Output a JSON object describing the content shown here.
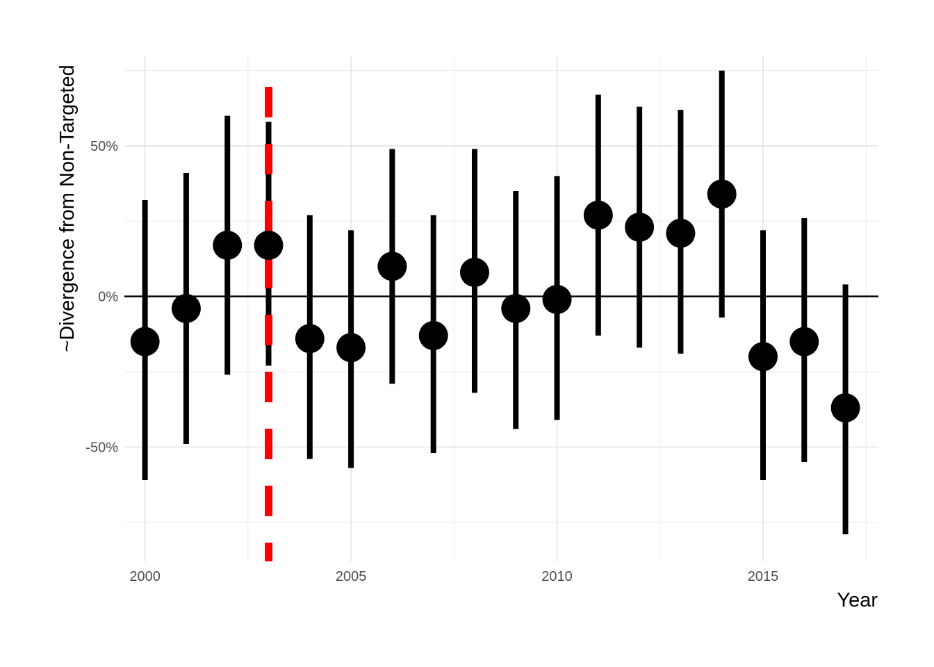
{
  "chart_data": {
    "type": "scatter",
    "title": "",
    "xlabel": "Year",
    "ylabel": "~Divergence from Non-Targeted",
    "xlim": [
      1999.5,
      2017.8
    ],
    "ylim": [
      -0.88,
      0.8
    ],
    "x_ticks": [
      2000,
      2005,
      2010,
      2015
    ],
    "x_tick_labels": [
      "2000",
      "2005",
      "2010",
      "2015"
    ],
    "y_ticks": [
      -0.5,
      0,
      0.5
    ],
    "y_tick_labels": [
      "-50%",
      "0%",
      "50%"
    ],
    "grid": true,
    "reference_hline": 0,
    "reference_vline": {
      "x": 2003,
      "color": "#ff0000",
      "style": "dashed"
    },
    "point_color": "#000000",
    "points": [
      {
        "x": 2000,
        "y": -0.15,
        "lower": -0.61,
        "upper": 0.32
      },
      {
        "x": 2001,
        "y": -0.04,
        "lower": -0.49,
        "upper": 0.41
      },
      {
        "x": 2002,
        "y": 0.17,
        "lower": -0.26,
        "upper": 0.6
      },
      {
        "x": 2003,
        "y": 0.17,
        "lower": -0.23,
        "upper": 0.58
      },
      {
        "x": 2004,
        "y": -0.14,
        "lower": -0.54,
        "upper": 0.27
      },
      {
        "x": 2005,
        "y": -0.17,
        "lower": -0.57,
        "upper": 0.22
      },
      {
        "x": 2006,
        "y": 0.1,
        "lower": -0.29,
        "upper": 0.49
      },
      {
        "x": 2007,
        "y": -0.13,
        "lower": -0.52,
        "upper": 0.27
      },
      {
        "x": 2008,
        "y": 0.08,
        "lower": -0.32,
        "upper": 0.49
      },
      {
        "x": 2009,
        "y": -0.04,
        "lower": -0.44,
        "upper": 0.35
      },
      {
        "x": 2010,
        "y": -0.01,
        "lower": -0.41,
        "upper": 0.4
      },
      {
        "x": 2011,
        "y": 0.27,
        "lower": -0.13,
        "upper": 0.67
      },
      {
        "x": 2012,
        "y": 0.23,
        "lower": -0.17,
        "upper": 0.63
      },
      {
        "x": 2013,
        "y": 0.21,
        "lower": -0.19,
        "upper": 0.62
      },
      {
        "x": 2014,
        "y": 0.34,
        "lower": -0.07,
        "upper": 0.75
      },
      {
        "x": 2015,
        "y": -0.2,
        "lower": -0.61,
        "upper": 0.22
      },
      {
        "x": 2016,
        "y": -0.15,
        "lower": -0.55,
        "upper": 0.26
      },
      {
        "x": 2017,
        "y": -0.37,
        "lower": -0.79,
        "upper": 0.04
      }
    ]
  }
}
